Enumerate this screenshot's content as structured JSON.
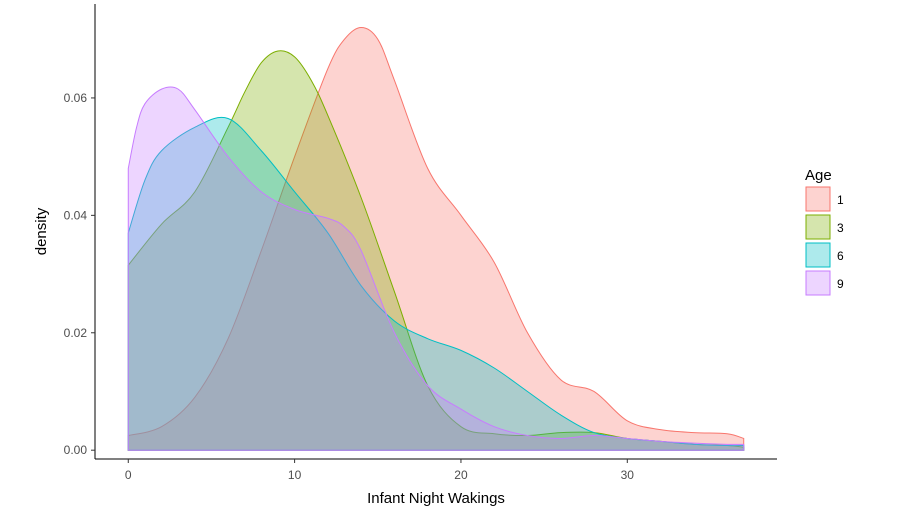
{
  "chart_data": {
    "type": "area",
    "title": "",
    "xlabel": "Infant Night Wakings",
    "ylabel": "density",
    "xlim": [
      -2,
      39
    ],
    "ylim": [
      -0.0015,
      0.076
    ],
    "x_ticks": [
      0,
      10,
      20,
      30
    ],
    "y_ticks": [
      0.0,
      0.02,
      0.04,
      0.06
    ],
    "x_tick_labels": [
      "0",
      "10",
      "20",
      "30"
    ],
    "y_tick_labels": [
      "0.00",
      "0.02",
      "0.04",
      "0.06"
    ],
    "grid": false,
    "legend_position": "right",
    "legend_title": "Age",
    "series": [
      {
        "name": "1",
        "color": "#F8766D",
        "x": [
          0,
          2,
          4,
          6,
          8,
          10,
          12,
          13,
          14,
          15,
          16,
          18,
          20,
          22,
          24,
          26,
          28,
          30,
          32,
          34,
          36,
          37
        ],
        "y": [
          0.0025,
          0.004,
          0.009,
          0.019,
          0.034,
          0.05,
          0.065,
          0.07,
          0.072,
          0.07,
          0.063,
          0.048,
          0.04,
          0.032,
          0.02,
          0.012,
          0.01,
          0.005,
          0.0035,
          0.003,
          0.0028,
          0.002
        ]
      },
      {
        "name": "3",
        "color": "#7CAE00",
        "x": [
          0,
          2,
          4,
          6,
          7,
          8,
          9,
          10,
          11,
          12,
          14,
          16,
          18,
          20,
          22,
          24,
          26,
          28,
          30,
          32,
          34,
          36,
          37
        ],
        "y": [
          0.0315,
          0.0385,
          0.044,
          0.055,
          0.061,
          0.066,
          0.068,
          0.067,
          0.063,
          0.057,
          0.043,
          0.027,
          0.011,
          0.004,
          0.0028,
          0.0025,
          0.003,
          0.003,
          0.002,
          0.0015,
          0.001,
          0.0008,
          0.0005
        ]
      },
      {
        "name": "6",
        "color": "#00BFC4",
        "x": [
          0,
          1,
          2,
          4,
          6,
          8,
          10,
          12,
          14,
          16,
          18,
          20,
          22,
          24,
          26,
          28,
          30,
          32,
          34,
          36,
          37
        ],
        "y": [
          0.037,
          0.046,
          0.051,
          0.055,
          0.0565,
          0.051,
          0.044,
          0.037,
          0.028,
          0.022,
          0.019,
          0.017,
          0.014,
          0.01,
          0.006,
          0.003,
          0.002,
          0.0015,
          0.001,
          0.0008,
          0.0008
        ]
      },
      {
        "name": "9",
        "color": "#C77CFF",
        "x": [
          0,
          0.5,
          1,
          2,
          3,
          4,
          6,
          8,
          10,
          12,
          13,
          14,
          16,
          18,
          20,
          22,
          24,
          26,
          28,
          30,
          32,
          34,
          36,
          37
        ],
        "y": [
          0.048,
          0.055,
          0.059,
          0.0615,
          0.0615,
          0.058,
          0.05,
          0.044,
          0.041,
          0.0395,
          0.038,
          0.034,
          0.02,
          0.011,
          0.007,
          0.004,
          0.0025,
          0.002,
          0.0025,
          0.002,
          0.0015,
          0.0012,
          0.001,
          0.001
        ]
      }
    ]
  }
}
